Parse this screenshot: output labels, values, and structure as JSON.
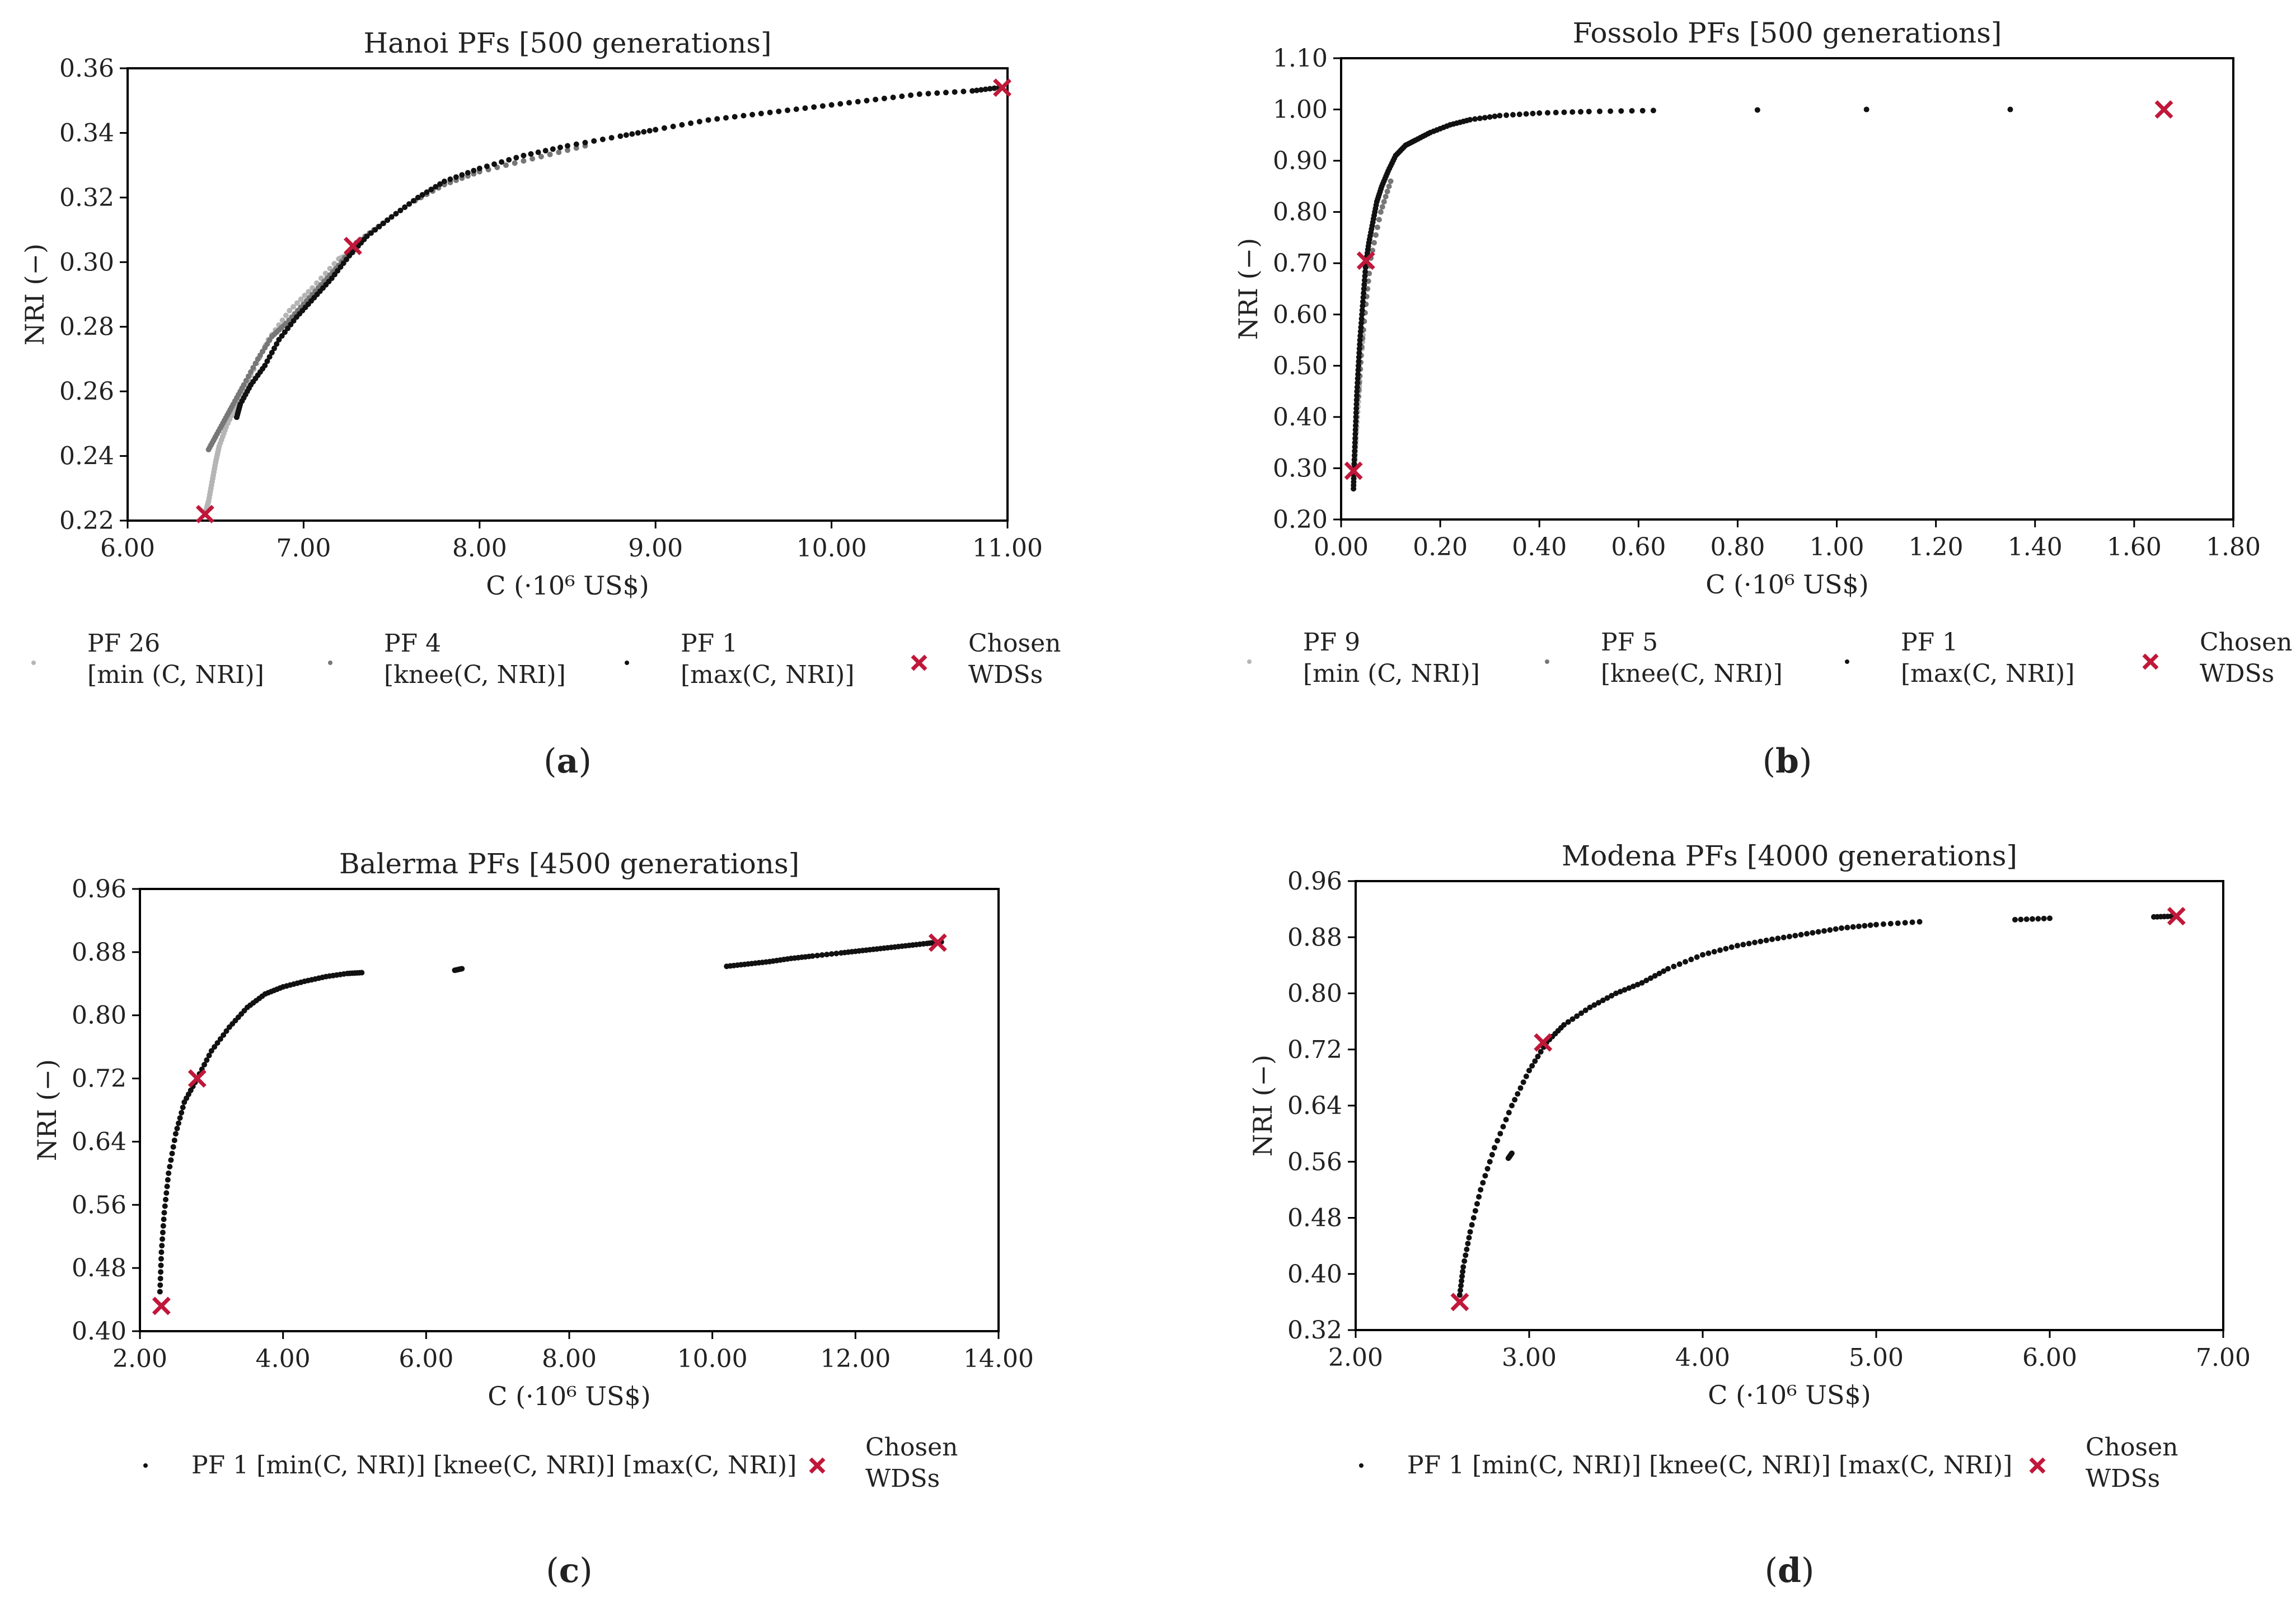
{
  "figure_title": "",
  "colors": {
    "axis": "#000000",
    "point_dark": "#111111",
    "point_mid": "#777777",
    "point_light": "#b5b5b5",
    "chosen": "#c0183a"
  },
  "chart_data": [
    {
      "id": "a",
      "type": "scatter",
      "title": "Hanoi PFs [500 generations]",
      "xlabel": "C (·10⁶ US$)",
      "ylabel": "NRI (−)",
      "xlim": [
        6.0,
        11.0
      ],
      "ylim": [
        0.22,
        0.36
      ],
      "xticks": [
        "6.00",
        "7.00",
        "8.00",
        "9.00",
        "10.00",
        "11.00"
      ],
      "yticks": [
        "0.22",
        "0.24",
        "0.26",
        "0.28",
        "0.30",
        "0.32",
        "0.34",
        "0.36"
      ],
      "panel_label": "a",
      "series": [
        {
          "name": "PF 26",
          "sub": "[min (C, NRI)]",
          "shade": "light",
          "points": [
            [
              6.44,
              0.222
            ],
            [
              6.46,
              0.226
            ],
            [
              6.48,
              0.232
            ],
            [
              6.5,
              0.238
            ],
            [
              6.52,
              0.243
            ],
            [
              6.56,
              0.249
            ],
            [
              6.62,
              0.256
            ],
            [
              6.7,
              0.265
            ],
            [
              6.8,
              0.276
            ],
            [
              6.92,
              0.285
            ],
            [
              7.05,
              0.292
            ],
            [
              7.2,
              0.301
            ],
            [
              7.28,
              0.303
            ]
          ]
        },
        {
          "name": "PF 4",
          "sub": "[knee(C, NRI)]",
          "shade": "mid",
          "points": [
            [
              6.46,
              0.242
            ],
            [
              6.5,
              0.246
            ],
            [
              6.55,
              0.251
            ],
            [
              6.6,
              0.256
            ],
            [
              6.66,
              0.262
            ],
            [
              6.74,
              0.27
            ],
            [
              6.82,
              0.277
            ],
            [
              6.9,
              0.281
            ],
            [
              7.0,
              0.287
            ],
            [
              7.1,
              0.293
            ],
            [
              7.2,
              0.299
            ],
            [
              7.3,
              0.306
            ],
            [
              7.45,
              0.312
            ],
            [
              7.6,
              0.318
            ],
            [
              7.8,
              0.324
            ],
            [
              8.0,
              0.328
            ],
            [
              8.3,
              0.332
            ],
            [
              8.6,
              0.336
            ],
            [
              9.0,
              0.341
            ]
          ]
        },
        {
          "name": "PF 1",
          "sub": "[max(C, NRI)]",
          "shade": "dark",
          "points": [
            [
              6.62,
              0.252
            ],
            [
              6.64,
              0.256
            ],
            [
              6.7,
              0.262
            ],
            [
              6.78,
              0.268
            ],
            [
              6.86,
              0.276
            ],
            [
              6.96,
              0.283
            ],
            [
              7.06,
              0.289
            ],
            [
              7.16,
              0.295
            ],
            [
              7.26,
              0.302
            ],
            [
              7.36,
              0.308
            ],
            [
              7.5,
              0.314
            ],
            [
              7.65,
              0.32
            ],
            [
              7.8,
              0.325
            ],
            [
              8.0,
              0.329
            ],
            [
              8.25,
              0.333
            ],
            [
              8.5,
              0.336
            ],
            [
              8.8,
              0.339
            ],
            [
              9.0,
              0.341
            ],
            [
              9.3,
              0.344
            ],
            [
              9.6,
              0.346
            ],
            [
              9.9,
              0.348
            ],
            [
              10.2,
              0.35
            ],
            [
              10.5,
              0.352
            ],
            [
              10.8,
              0.353
            ],
            [
              10.95,
              0.354
            ]
          ]
        }
      ],
      "chosen": {
        "name": "Chosen WDSs",
        "points": [
          [
            6.44,
            0.222
          ],
          [
            7.28,
            0.305
          ],
          [
            10.97,
            0.354
          ]
        ]
      }
    },
    {
      "id": "b",
      "type": "scatter",
      "title": "Fossolo PFs [500 generations]",
      "xlabel": "C (·10⁶ US$)",
      "ylabel": "NRI (−)",
      "xlim": [
        0.0,
        1.8
      ],
      "ylim": [
        0.2,
        1.1
      ],
      "xticks": [
        "0.00",
        "0.20",
        "0.40",
        "0.60",
        "0.80",
        "1.00",
        "1.20",
        "1.40",
        "1.60",
        "1.80"
      ],
      "yticks": [
        "0.20",
        "0.30",
        "0.40",
        "0.50",
        "0.60",
        "0.70",
        "0.80",
        "0.90",
        "1.00",
        "1.10"
      ],
      "panel_label": "b",
      "series": [
        {
          "name": "PF 9",
          "sub": "[min (C, NRI)]",
          "shade": "light",
          "points": [
            [
              0.026,
              0.3
            ],
            [
              0.028,
              0.32
            ],
            [
              0.03,
              0.36
            ],
            [
              0.034,
              0.42
            ],
            [
              0.038,
              0.48
            ],
            [
              0.044,
              0.56
            ]
          ]
        },
        {
          "name": "PF 5",
          "sub": "[knee(C, NRI)]",
          "shade": "mid",
          "points": [
            [
              0.035,
              0.44
            ],
            [
              0.04,
              0.52
            ],
            [
              0.05,
              0.62
            ],
            [
              0.06,
              0.71
            ],
            [
              0.08,
              0.8
            ],
            [
              0.1,
              0.86
            ]
          ]
        },
        {
          "name": "PF 1",
          "sub": "[max(C, NRI)]",
          "shade": "dark",
          "points": [
            [
              0.025,
              0.26
            ],
            [
              0.026,
              0.3
            ],
            [
              0.028,
              0.35
            ],
            [
              0.03,
              0.4
            ],
            [
              0.032,
              0.45
            ],
            [
              0.035,
              0.5
            ],
            [
              0.038,
              0.55
            ],
            [
              0.042,
              0.6
            ],
            [
              0.046,
              0.65
            ],
            [
              0.05,
              0.7
            ],
            [
              0.056,
              0.74
            ],
            [
              0.064,
              0.78
            ],
            [
              0.072,
              0.82
            ],
            [
              0.082,
              0.85
            ],
            [
              0.095,
              0.88
            ],
            [
              0.11,
              0.91
            ],
            [
              0.13,
              0.93
            ],
            [
              0.15,
              0.94
            ],
            [
              0.18,
              0.955
            ],
            [
              0.22,
              0.97
            ],
            [
              0.26,
              0.98
            ],
            [
              0.32,
              0.988
            ],
            [
              0.4,
              0.993
            ],
            [
              0.5,
              0.996
            ],
            [
              0.63,
              0.998
            ],
            [
              0.84,
              0.999
            ],
            [
              1.06,
              1.0
            ],
            [
              1.35,
              1.0
            ]
          ]
        }
      ],
      "chosen": {
        "name": "Chosen WDSs",
        "points": [
          [
            0.025,
            0.295
          ],
          [
            0.05,
            0.705
          ],
          [
            1.66,
            1.0
          ]
        ]
      }
    },
    {
      "id": "c",
      "type": "scatter",
      "title": "Balerma PFs [4500 generations]",
      "xlabel": "C (·10⁶ US$)",
      "ylabel": "NRI (−)",
      "xlim": [
        2.0,
        14.0
      ],
      "ylim": [
        0.4,
        0.96
      ],
      "xticks": [
        "2.00",
        "4.00",
        "6.00",
        "8.00",
        "10.00",
        "12.00",
        "14.00"
      ],
      "yticks": [
        "0.40",
        "0.48",
        "0.56",
        "0.64",
        "0.72",
        "0.80",
        "0.88",
        "0.96"
      ],
      "panel_label": "c",
      "series": [
        {
          "name": "PF 1 [min(C, NRI)] [knee(C, NRI)] [max(C, NRI)]",
          "sub": "",
          "shade": "dark",
          "points": [
            [
              2.28,
              0.45
            ],
            [
              2.3,
              0.5
            ],
            [
              2.34,
              0.55
            ],
            [
              2.4,
              0.6
            ],
            [
              2.5,
              0.65
            ],
            [
              2.62,
              0.69
            ],
            [
              2.8,
              0.72
            ],
            [
              3.0,
              0.755
            ],
            [
              3.25,
              0.785
            ],
            [
              3.5,
              0.81
            ],
            [
              3.75,
              0.827
            ],
            [
              4.0,
              0.836
            ],
            [
              4.3,
              0.843
            ],
            [
              4.6,
              0.849
            ],
            [
              4.9,
              0.853
            ],
            [
              5.1,
              0.854
            ],
            [
              6.4,
              0.857
            ],
            [
              6.5,
              0.859
            ],
            [
              10.2,
              0.862
            ],
            [
              10.5,
              0.865
            ],
            [
              10.8,
              0.868
            ],
            [
              11.1,
              0.872
            ],
            [
              11.4,
              0.875
            ],
            [
              11.8,
              0.879
            ],
            [
              12.1,
              0.882
            ],
            [
              12.4,
              0.885
            ],
            [
              12.7,
              0.888
            ],
            [
              13.0,
              0.891
            ],
            [
              13.2,
              0.893
            ]
          ]
        }
      ],
      "chosen": {
        "name": "Chosen WDSs",
        "points": [
          [
            2.3,
            0.432
          ],
          [
            2.8,
            0.72
          ],
          [
            13.15,
            0.892
          ]
        ]
      }
    },
    {
      "id": "d",
      "type": "scatter",
      "title": "Modena PFs [4000 generations]",
      "xlabel": "C (·10⁶ US$)",
      "ylabel": "NRI (−)",
      "xlim": [
        2.0,
        7.0
      ],
      "ylim": [
        0.32,
        0.96
      ],
      "xticks": [
        "2.00",
        "3.00",
        "4.00",
        "5.00",
        "6.00",
        "7.00"
      ],
      "yticks": [
        "0.32",
        "0.40",
        "0.48",
        "0.56",
        "0.64",
        "0.72",
        "0.80",
        "0.88",
        "0.96"
      ],
      "panel_label": "d",
      "series": [
        {
          "name": "PF 1 [min(C, NRI)] [knee(C, NRI)] [max(C, NRI)]",
          "sub": "",
          "shade": "dark",
          "points": [
            [
              2.6,
              0.37
            ],
            [
              2.62,
              0.41
            ],
            [
              2.66,
              0.46
            ],
            [
              2.72,
              0.52
            ],
            [
              2.8,
              0.58
            ],
            [
              2.9,
              0.64
            ],
            [
              3.0,
              0.69
            ],
            [
              3.1,
              0.73
            ],
            [
              3.2,
              0.755
            ],
            [
              3.35,
              0.78
            ],
            [
              3.5,
              0.8
            ],
            [
              3.65,
              0.815
            ],
            [
              3.8,
              0.835
            ],
            [
              4.0,
              0.855
            ],
            [
              4.2,
              0.868
            ],
            [
              4.4,
              0.877
            ],
            [
              4.6,
              0.885
            ],
            [
              4.8,
              0.893
            ],
            [
              5.0,
              0.898
            ],
            [
              5.25,
              0.902
            ],
            [
              5.8,
              0.905
            ],
            [
              6.0,
              0.907
            ],
            [
              6.6,
              0.909
            ],
            [
              6.72,
              0.91
            ],
            [
              2.88,
              0.565
            ],
            [
              2.9,
              0.572
            ]
          ]
        }
      ],
      "chosen": {
        "name": "Chosen WDSs",
        "points": [
          [
            2.6,
            0.36
          ],
          [
            3.08,
            0.73
          ],
          [
            6.73,
            0.91
          ]
        ]
      }
    }
  ]
}
